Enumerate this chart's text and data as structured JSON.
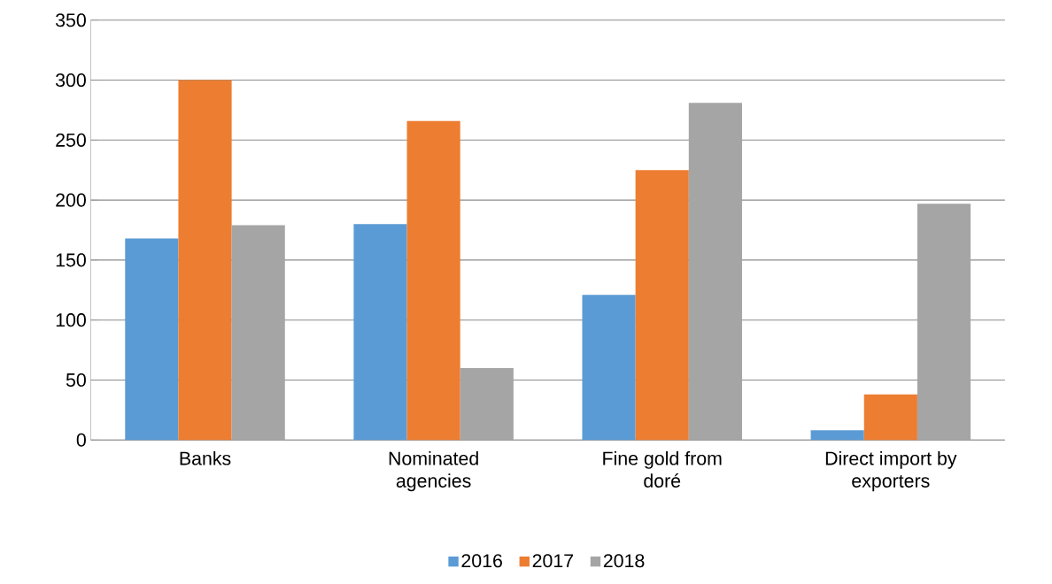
{
  "chart_data": {
    "type": "bar",
    "categories": [
      "Banks",
      "Nominated agencies",
      "Fine gold from doré",
      "Direct import by exporters"
    ],
    "series": [
      {
        "name": "2016",
        "color": "#5b9bd5",
        "values": [
          168,
          180,
          121,
          8
        ]
      },
      {
        "name": "2017",
        "color": "#ed7d31",
        "values": [
          300,
          266,
          225,
          38
        ]
      },
      {
        "name": "2018",
        "color": "#a5a5a5",
        "values": [
          179,
          60,
          281,
          197
        ]
      }
    ],
    "ylim": [
      0,
      350
    ],
    "yticks": [
      0,
      50,
      100,
      150,
      200,
      250,
      300,
      350
    ],
    "grid": "y",
    "legend": "bottom"
  }
}
